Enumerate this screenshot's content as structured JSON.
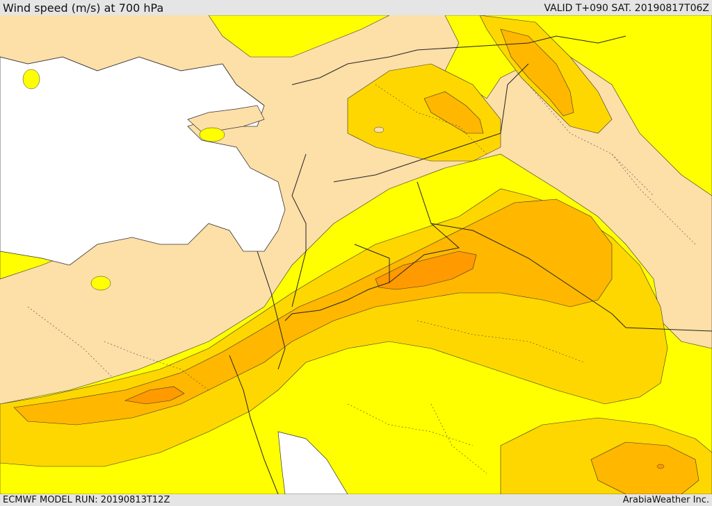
{
  "header": {
    "title": "Wind speed (m/s) at 700 hPa",
    "valid_time": "VALID T+090 SAT. 20190817T06Z"
  },
  "footer": {
    "model_run": "ECMWF MODEL RUN: 20190813T12Z",
    "credit": "ArabiaWeather Inc."
  },
  "map": {
    "variable": "wind speed",
    "units": "m/s",
    "level": "700 hPa",
    "shading_colors": {
      "sea": "#ffffff",
      "lightest_band": "#fddfa8",
      "band_2": "#ffff00",
      "band_3": "#ffd700",
      "band_4": "#ffb700",
      "band_5": "#ff9a00"
    }
  }
}
